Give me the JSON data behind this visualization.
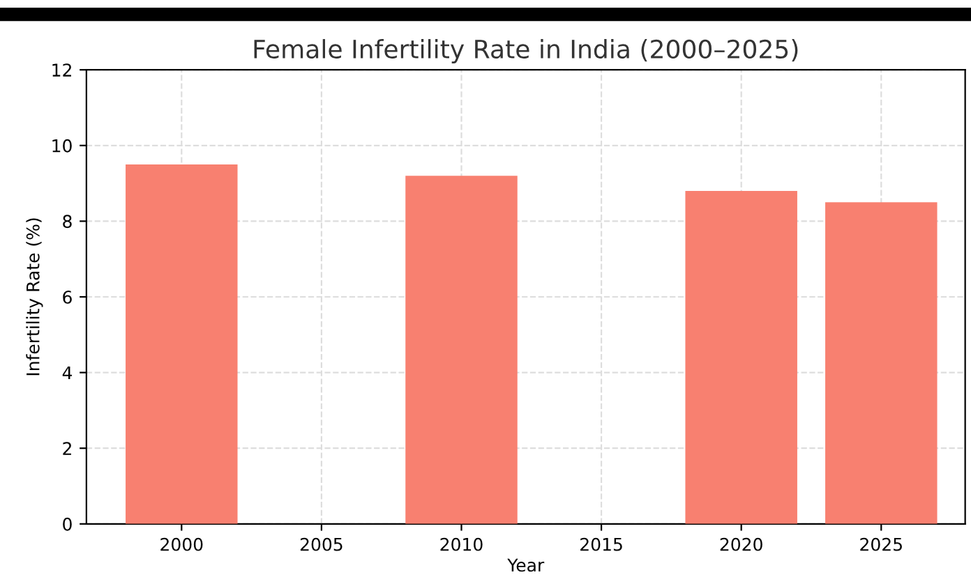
{
  "chart_data": {
    "type": "bar",
    "title": "Female Infertility Rate in India (2000–2025)",
    "xlabel": "Year",
    "ylabel": "Infertility Rate (%)",
    "x": [
      2000,
      2010,
      2020,
      2025
    ],
    "values": [
      9.5,
      9.2,
      8.8,
      8.5
    ],
    "color": "#f88070",
    "xlim": [
      1996.6,
      2028
    ],
    "xticks": [
      2000,
      2005,
      2010,
      2015,
      2020,
      2025
    ],
    "ylim": [
      0,
      12
    ],
    "yticks": [
      0,
      2,
      4,
      6,
      8,
      10,
      12
    ],
    "grid": true
  }
}
